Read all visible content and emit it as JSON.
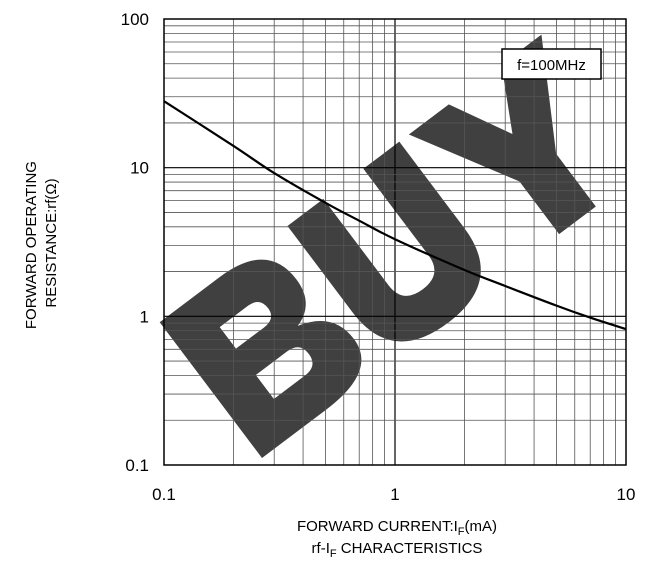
{
  "chart_data": {
    "type": "line",
    "x_scale": "log",
    "y_scale": "log",
    "xlim": [
      0.1,
      10
    ],
    "ylim": [
      0.1,
      100
    ],
    "x_ticks": [
      "0.1",
      "1",
      "10"
    ],
    "y_ticks": [
      "0.1",
      "1",
      "10",
      "100"
    ],
    "grid": true,
    "xlabel": {
      "prefix": "FORWARD CURRENT:I",
      "subscript": "F",
      "suffix": "(mA)"
    },
    "caption": {
      "prefix": "rf-I",
      "subscript": "F",
      "suffix": " CHARACTERISTICS"
    },
    "ylabel_lines": [
      "FORWARD OPERATING",
      "RESISTANCE:rf(Ω)"
    ],
    "annotation": "f=100MHz",
    "watermark": "BUY",
    "series": [
      {
        "color": "#000000",
        "x": [
          0.1,
          0.2,
          0.3,
          0.5,
          0.7,
          1,
          2,
          3,
          5,
          7,
          10
        ],
        "y": [
          28,
          14,
          9.2,
          5.8,
          4.4,
          3.3,
          2.05,
          1.6,
          1.18,
          0.98,
          0.82
        ]
      }
    ]
  }
}
